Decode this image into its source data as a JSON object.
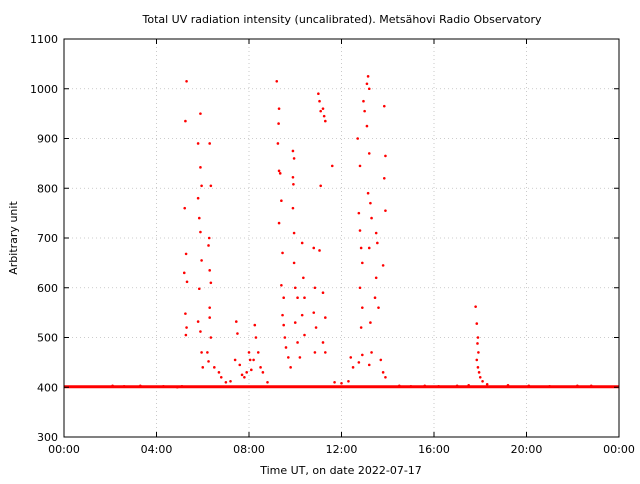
{
  "chart_data": {
    "type": "scatter",
    "title": "Total UV radiation intensity (uncalibrated). Metsähovi Radio Observatory",
    "xlabel": "Time UT, on date 2022-07-17",
    "ylabel": "Arbitrary unit",
    "x_unit": "hours UT",
    "xlim": [
      0,
      24
    ],
    "ylim": [
      300,
      1100
    ],
    "x_ticks": [
      {
        "value": 0,
        "label": "00:00"
      },
      {
        "value": 4,
        "label": "04:00"
      },
      {
        "value": 8,
        "label": "08:00"
      },
      {
        "value": 12,
        "label": "12:00"
      },
      {
        "value": 16,
        "label": "16:00"
      },
      {
        "value": 20,
        "label": "20:00"
      },
      {
        "value": 24,
        "label": "00:00"
      }
    ],
    "y_ticks": [
      300,
      400,
      500,
      600,
      700,
      800,
      900,
      1000,
      1100
    ],
    "grid": true,
    "point_color": "#ff0000",
    "baseline": {
      "value": 401,
      "x_range": [
        0,
        24
      ]
    },
    "series": [
      {
        "points": [
          [
            2.1,
            403
          ],
          [
            2.6,
            402
          ],
          [
            3.3,
            403
          ],
          [
            4.3,
            402
          ],
          [
            4.9,
            400
          ],
          [
            5.1,
            402
          ],
          [
            5.3,
            1015
          ],
          [
            5.25,
            935
          ],
          [
            5.22,
            760
          ],
          [
            5.28,
            668
          ],
          [
            5.2,
            630
          ],
          [
            5.32,
            612
          ],
          [
            5.25,
            548
          ],
          [
            5.3,
            520
          ],
          [
            5.27,
            505
          ],
          [
            5.9,
            950
          ],
          [
            5.8,
            890
          ],
          [
            5.9,
            842
          ],
          [
            5.95,
            805
          ],
          [
            5.8,
            780
          ],
          [
            5.85,
            740
          ],
          [
            5.9,
            712
          ],
          [
            5.95,
            655
          ],
          [
            5.85,
            598
          ],
          [
            5.8,
            532
          ],
          [
            5.9,
            512
          ],
          [
            5.95,
            470
          ],
          [
            6.0,
            440
          ],
          [
            6.3,
            890
          ],
          [
            6.35,
            805
          ],
          [
            6.28,
            700
          ],
          [
            6.25,
            685
          ],
          [
            6.3,
            635
          ],
          [
            6.35,
            610
          ],
          [
            6.3,
            560
          ],
          [
            6.3,
            540
          ],
          [
            6.35,
            500
          ],
          [
            6.2,
            470
          ],
          [
            6.25,
            452
          ],
          [
            6.5,
            440
          ],
          [
            6.7,
            430
          ],
          [
            6.8,
            420
          ],
          [
            7.0,
            410
          ],
          [
            7.2,
            412
          ],
          [
            7.4,
            455
          ],
          [
            7.45,
            532
          ],
          [
            7.5,
            508
          ],
          [
            7.6,
            445
          ],
          [
            7.7,
            425
          ],
          [
            7.8,
            420
          ],
          [
            7.9,
            430
          ],
          [
            8.0,
            470
          ],
          [
            8.05,
            455
          ],
          [
            8.1,
            435
          ],
          [
            8.2,
            455
          ],
          [
            8.25,
            525
          ],
          [
            8.3,
            500
          ],
          [
            8.4,
            470
          ],
          [
            8.5,
            440
          ],
          [
            8.6,
            430
          ],
          [
            8.8,
            410
          ],
          [
            9.2,
            1015
          ],
          [
            9.3,
            960
          ],
          [
            9.25,
            890
          ],
          [
            9.28,
            930
          ],
          [
            9.3,
            835
          ],
          [
            9.35,
            830
          ],
          [
            9.4,
            775
          ],
          [
            9.3,
            730
          ],
          [
            9.45,
            670
          ],
          [
            9.4,
            605
          ],
          [
            9.5,
            580
          ],
          [
            9.45,
            545
          ],
          [
            9.5,
            525
          ],
          [
            9.55,
            500
          ],
          [
            9.6,
            480
          ],
          [
            9.7,
            460
          ],
          [
            9.8,
            440
          ],
          [
            9.9,
            875
          ],
          [
            9.95,
            860
          ],
          [
            9.9,
            822
          ],
          [
            9.92,
            808
          ],
          [
            9.9,
            760
          ],
          [
            9.95,
            710
          ],
          [
            9.95,
            650
          ],
          [
            10.0,
            600
          ],
          [
            10.1,
            580
          ],
          [
            10.0,
            530
          ],
          [
            10.1,
            490
          ],
          [
            10.2,
            460
          ],
          [
            10.3,
            690
          ],
          [
            10.35,
            620
          ],
          [
            10.4,
            580
          ],
          [
            10.3,
            545
          ],
          [
            10.4,
            505
          ],
          [
            10.8,
            680
          ],
          [
            10.85,
            600
          ],
          [
            10.8,
            550
          ],
          [
            10.9,
            520
          ],
          [
            10.85,
            470
          ],
          [
            11.0,
            990
          ],
          [
            11.05,
            975
          ],
          [
            11.1,
            955
          ],
          [
            11.2,
            960
          ],
          [
            11.25,
            945
          ],
          [
            11.3,
            935
          ],
          [
            11.1,
            805
          ],
          [
            11.05,
            675
          ],
          [
            11.2,
            590
          ],
          [
            11.3,
            540
          ],
          [
            11.2,
            490
          ],
          [
            11.3,
            470
          ],
          [
            11.6,
            845
          ],
          [
            11.7,
            410
          ],
          [
            12.0,
            408
          ],
          [
            12.3,
            412
          ],
          [
            12.4,
            460
          ],
          [
            12.5,
            440
          ],
          [
            12.7,
            900
          ],
          [
            12.8,
            845
          ],
          [
            12.75,
            750
          ],
          [
            12.8,
            715
          ],
          [
            12.85,
            680
          ],
          [
            12.9,
            650
          ],
          [
            12.8,
            600
          ],
          [
            12.9,
            560
          ],
          [
            12.85,
            520
          ],
          [
            12.9,
            465
          ],
          [
            12.75,
            450
          ],
          [
            12.95,
            975
          ],
          [
            13.0,
            955
          ],
          [
            13.1,
            1010
          ],
          [
            13.15,
            1025
          ],
          [
            13.2,
            1000
          ],
          [
            13.1,
            925
          ],
          [
            13.2,
            870
          ],
          [
            13.15,
            790
          ],
          [
            13.25,
            770
          ],
          [
            13.3,
            740
          ],
          [
            13.2,
            680
          ],
          [
            13.25,
            530
          ],
          [
            13.3,
            470
          ],
          [
            13.2,
            445
          ],
          [
            13.5,
            710
          ],
          [
            13.55,
            690
          ],
          [
            13.5,
            620
          ],
          [
            13.45,
            580
          ],
          [
            13.6,
            560
          ],
          [
            13.7,
            455
          ],
          [
            13.8,
            430
          ],
          [
            13.85,
            965
          ],
          [
            13.9,
            865
          ],
          [
            13.85,
            820
          ],
          [
            13.9,
            755
          ],
          [
            13.8,
            645
          ],
          [
            13.9,
            420
          ],
          [
            14.5,
            403
          ],
          [
            15.0,
            402
          ],
          [
            15.6,
            403
          ],
          [
            16.2,
            402
          ],
          [
            17.0,
            403
          ],
          [
            17.5,
            404
          ],
          [
            17.8,
            562
          ],
          [
            17.85,
            528
          ],
          [
            17.9,
            500
          ],
          [
            17.88,
            488
          ],
          [
            17.92,
            470
          ],
          [
            17.85,
            455
          ],
          [
            17.9,
            440
          ],
          [
            17.95,
            430
          ],
          [
            18.0,
            420
          ],
          [
            18.1,
            412
          ],
          [
            18.3,
            406
          ],
          [
            19.2,
            404
          ],
          [
            20.1,
            403
          ],
          [
            21.0,
            402
          ],
          [
            22.2,
            403
          ],
          [
            22.8,
            403
          ]
        ]
      }
    ]
  }
}
